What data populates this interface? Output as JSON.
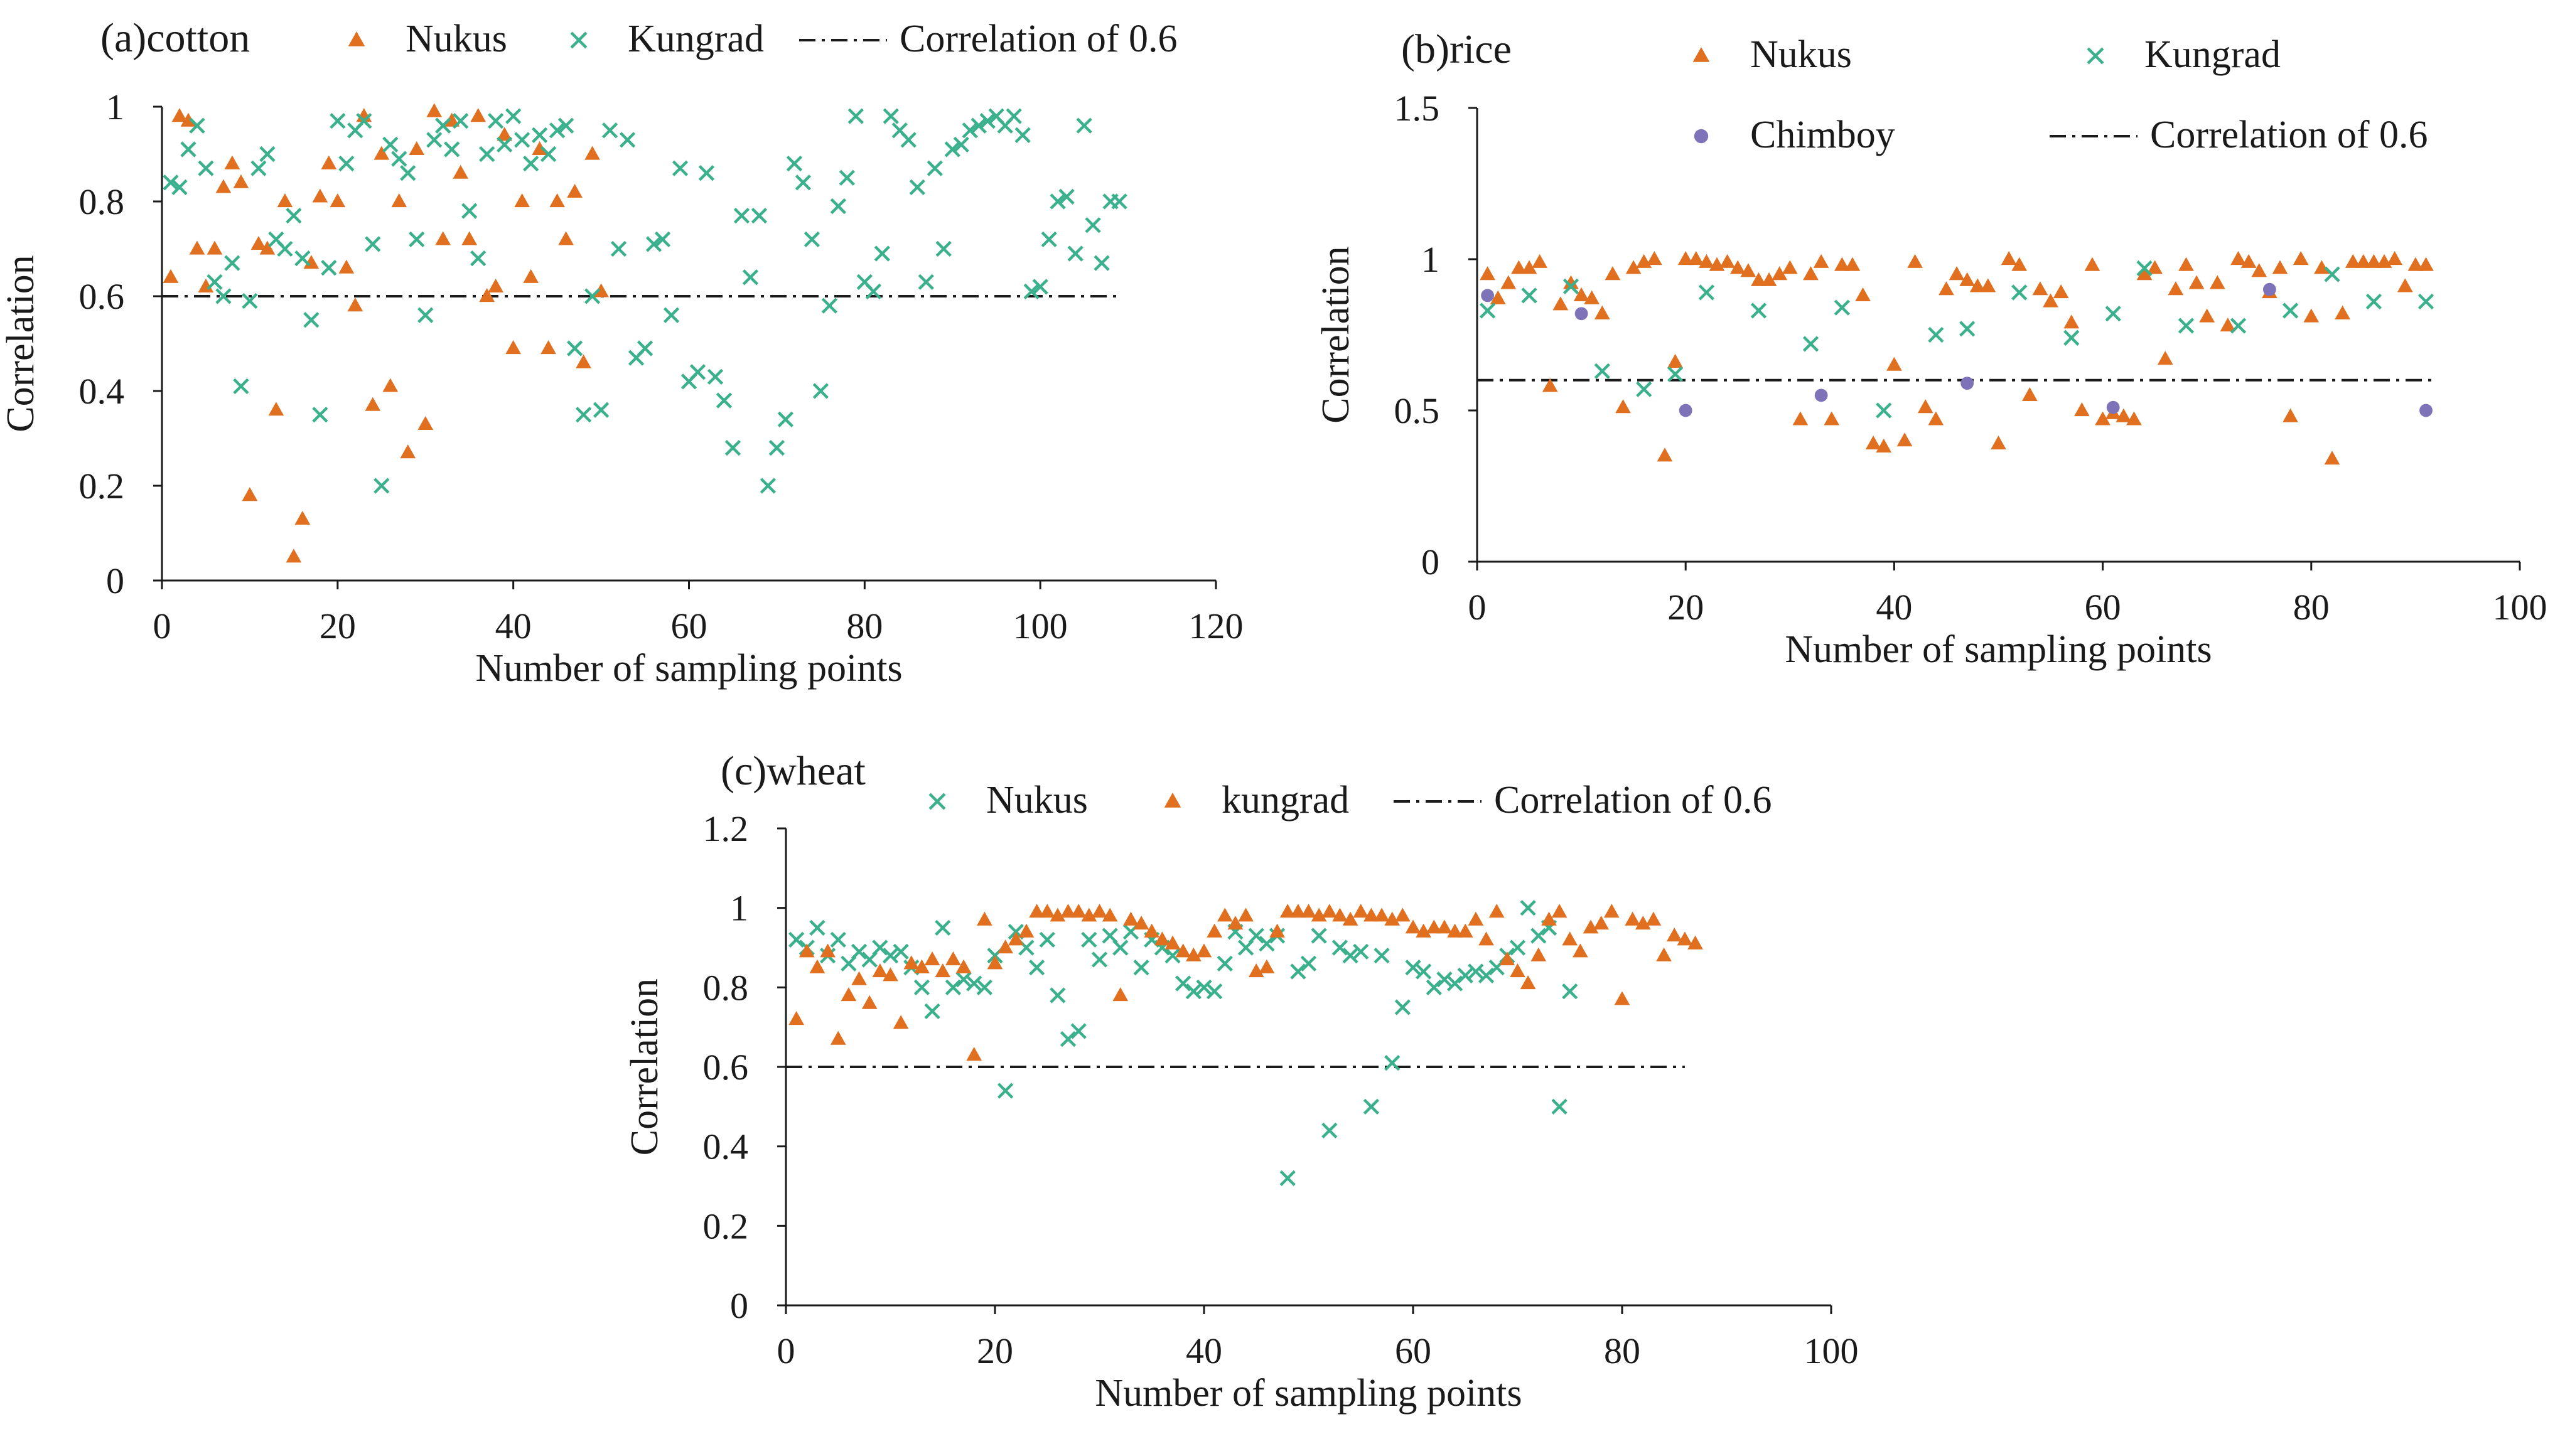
{
  "colors": {
    "nukus_orange": "#e07020",
    "kungrad_green": "#3ab08c",
    "chimboy_purple": "#7e72b8",
    "axis": "#1a1a1a"
  },
  "chart_data": [
    {
      "type": "scatter",
      "panel": "a",
      "title": "(a)cotton",
      "xlabel": "Number of sampling points",
      "ylabel": "Correlation",
      "xlim": [
        0,
        120
      ],
      "ylim": [
        0,
        1
      ],
      "xticks": [
        "0",
        "20",
        "40",
        "60",
        "80",
        "100",
        "120"
      ],
      "yticks": [
        "0",
        "0.2",
        "0.4",
        "0.6",
        "0.8",
        "1"
      ],
      "legend_position": "top",
      "threshold": {
        "label": "Correlation of 0.6",
        "value": 0.6,
        "x_range": [
          0,
          109
        ]
      },
      "series": [
        {
          "name": "Nukus",
          "marker": "triangle",
          "color": "#e07020",
          "x": [
            1,
            2,
            3,
            4,
            5,
            6,
            7,
            8,
            9,
            10,
            11,
            12,
            13,
            14,
            15,
            16,
            17,
            18,
            19,
            20,
            21,
            22,
            23,
            24,
            25,
            26,
            27,
            28,
            29,
            30,
            31,
            32,
            33,
            34,
            35,
            36,
            37,
            38,
            39,
            40,
            41,
            42,
            43,
            44,
            45,
            46,
            47,
            48,
            49,
            50
          ],
          "y": [
            0.64,
            0.98,
            0.97,
            0.7,
            0.62,
            0.7,
            0.83,
            0.88,
            0.84,
            0.18,
            0.71,
            0.7,
            0.36,
            0.8,
            0.05,
            0.13,
            0.67,
            0.81,
            0.88,
            0.8,
            0.66,
            0.58,
            0.98,
            0.37,
            0.9,
            0.41,
            0.8,
            0.27,
            0.91,
            0.33,
            0.99,
            0.72,
            0.97,
            0.86,
            0.72,
            0.98,
            0.6,
            0.62,
            0.94,
            0.49,
            0.8,
            0.64,
            0.91,
            0.49,
            0.8,
            0.72,
            0.82,
            0.46,
            0.9,
            0.61
          ]
        },
        {
          "name": "Kungrad",
          "marker": "x",
          "color": "#3ab08c",
          "x": [
            1,
            2,
            3,
            4,
            5,
            6,
            7,
            8,
            9,
            10,
            11,
            12,
            13,
            14,
            15,
            16,
            17,
            18,
            19,
            20,
            21,
            22,
            23,
            24,
            25,
            26,
            27,
            28,
            29,
            30,
            31,
            32,
            33,
            34,
            35,
            36,
            37,
            38,
            39,
            40,
            41,
            42,
            43,
            44,
            45,
            46,
            47,
            48,
            49,
            50,
            51,
            52,
            53,
            54,
            55,
            56,
            57,
            58,
            59,
            60,
            61,
            62,
            63,
            64,
            65,
            66,
            67,
            68,
            69,
            70,
            71,
            72,
            73,
            74,
            75,
            76,
            77,
            78,
            79,
            80,
            81,
            82,
            83,
            84,
            85,
            86,
            87,
            88,
            89,
            90,
            91,
            92,
            93,
            94,
            95,
            96,
            97,
            98,
            99,
            100,
            101,
            102,
            103,
            104,
            105,
            106,
            107,
            108,
            109
          ],
          "y": [
            0.84,
            0.83,
            0.91,
            0.96,
            0.87,
            0.63,
            0.6,
            0.67,
            0.41,
            0.59,
            0.87,
            0.9,
            0.72,
            0.7,
            0.77,
            0.68,
            0.55,
            0.35,
            0.66,
            0.97,
            0.88,
            0.95,
            0.97,
            0.71,
            0.2,
            0.92,
            0.89,
            0.86,
            0.72,
            0.56,
            0.93,
            0.96,
            0.91,
            0.97,
            0.78,
            0.68,
            0.9,
            0.97,
            0.92,
            0.98,
            0.93,
            0.88,
            0.94,
            0.9,
            0.95,
            0.96,
            0.49,
            0.35,
            0.6,
            0.36,
            0.95,
            0.7,
            0.93,
            0.47,
            0.49,
            0.71,
            0.72,
            0.56,
            0.87,
            0.42,
            0.44,
            0.86,
            0.43,
            0.38,
            0.28,
            0.77,
            0.64,
            0.77,
            0.2,
            0.28,
            0.34,
            0.88,
            0.84,
            0.72,
            0.4,
            0.58,
            0.79,
            0.85,
            0.98,
            0.63,
            0.61,
            0.69,
            0.98,
            0.95,
            0.93,
            0.83,
            0.63,
            0.87,
            0.7,
            0.91,
            0.92,
            0.95,
            0.96,
            0.97,
            0.98,
            0.96,
            0.98,
            0.94,
            0.61,
            0.62,
            0.72,
            0.8,
            0.81,
            0.69,
            0.96,
            0.75,
            0.67,
            0.8,
            0.8
          ]
        }
      ]
    },
    {
      "type": "scatter",
      "panel": "b",
      "title": "(b)rice",
      "xlabel": "Number of sampling points",
      "ylabel": "Correlation",
      "xlim": [
        0,
        100
      ],
      "ylim": [
        0,
        1.5
      ],
      "xticks": [
        "0",
        "20",
        "40",
        "60",
        "80",
        "100"
      ],
      "yticks": [
        "0",
        "0.5",
        "1",
        "1.5"
      ],
      "legend_position": "top",
      "threshold": {
        "label": "Correlation of 0.6",
        "value": 0.6,
        "x_range": [
          0,
          92
        ]
      },
      "series": [
        {
          "name": "Nukus",
          "marker": "triangle",
          "color": "#e07020",
          "x": [
            1,
            2,
            3,
            4,
            5,
            6,
            7,
            8,
            9,
            10,
            11,
            12,
            13,
            14,
            15,
            16,
            17,
            18,
            19,
            20,
            21,
            22,
            23,
            24,
            25,
            26,
            27,
            28,
            29,
            30,
            31,
            32,
            33,
            34,
            35,
            36,
            37,
            38,
            39,
            40,
            41,
            42,
            43,
            44,
            45,
            46,
            47,
            48,
            49,
            50,
            51,
            52,
            53,
            54,
            55,
            56,
            57,
            58,
            59,
            60,
            61,
            62,
            63,
            64,
            65,
            66,
            67,
            68,
            69,
            70,
            71,
            72,
            73,
            74,
            75,
            76,
            77,
            78,
            79,
            80,
            81,
            82,
            83,
            84,
            85,
            86,
            87,
            88,
            89,
            90,
            91
          ],
          "y": [
            0.95,
            0.87,
            0.92,
            0.97,
            0.97,
            0.99,
            0.58,
            0.85,
            0.92,
            0.88,
            0.87,
            0.82,
            0.95,
            0.51,
            0.97,
            0.99,
            1.0,
            0.35,
            0.66,
            1.0,
            1.0,
            0.99,
            0.98,
            0.99,
            0.97,
            0.96,
            0.93,
            0.93,
            0.95,
            0.97,
            0.47,
            0.95,
            0.99,
            0.47,
            0.98,
            0.98,
            0.88,
            0.39,
            0.38,
            0.65,
            0.4,
            0.99,
            0.51,
            0.47,
            0.9,
            0.95,
            0.93,
            0.91,
            0.91,
            0.39,
            1.0,
            0.98,
            0.55,
            0.9,
            0.86,
            0.89,
            0.79,
            0.5,
            0.98,
            0.47,
            0.49,
            0.48,
            0.47,
            0.95,
            0.97,
            0.67,
            0.9,
            0.98,
            0.92,
            0.81,
            0.92,
            0.78,
            1.0,
            0.99,
            0.96,
            0.89,
            0.97,
            0.48,
            1.0,
            0.81,
            0.97,
            0.34,
            0.82,
            0.99,
            0.99,
            0.99,
            0.99,
            1.0,
            0.91,
            0.98,
            0.98
          ]
        },
        {
          "name": "Kungrad",
          "marker": "x",
          "color": "#3ab08c",
          "x": [
            1,
            5,
            9,
            12,
            16,
            19,
            22,
            27,
            32,
            35,
            39,
            44,
            47,
            52,
            57,
            61,
            64,
            68,
            73,
            78,
            82,
            86,
            91
          ],
          "y": [
            0.83,
            0.88,
            0.91,
            0.63,
            0.57,
            0.62,
            0.89,
            0.83,
            0.72,
            0.84,
            0.5,
            0.75,
            0.77,
            0.89,
            0.74,
            0.82,
            0.97,
            0.78,
            0.78,
            0.83,
            0.95,
            0.86,
            0.86
          ]
        },
        {
          "name": "Chimboy",
          "marker": "dot",
          "color": "#7e72b8",
          "x": [
            1,
            10,
            20,
            33,
            47,
            61,
            76,
            91
          ],
          "y": [
            0.88,
            0.82,
            0.5,
            0.55,
            0.59,
            0.51,
            0.9,
            0.5
          ]
        }
      ]
    },
    {
      "type": "scatter",
      "panel": "c",
      "title": "(c)wheat",
      "xlabel": "Number of sampling points",
      "ylabel": "Correlation",
      "xlim": [
        0,
        100
      ],
      "ylim": [
        0,
        1.2
      ],
      "xticks": [
        "0",
        "20",
        "40",
        "60",
        "80",
        "100"
      ],
      "yticks": [
        "0",
        "0.2",
        "0.4",
        "0.6",
        "0.8",
        "1",
        "1.2"
      ],
      "legend_position": "top",
      "threshold": {
        "label": "Correlation of 0.6",
        "value": 0.6,
        "x_range": [
          0,
          86
        ]
      },
      "series": [
        {
          "name": "Nukus",
          "marker": "x",
          "color": "#3ab08c",
          "x": [
            1,
            2,
            3,
            4,
            5,
            6,
            7,
            8,
            9,
            10,
            11,
            12,
            13,
            14,
            15,
            16,
            17,
            18,
            19,
            20,
            21,
            22,
            23,
            24,
            25,
            26,
            27,
            28,
            29,
            30,
            31,
            32,
            33,
            34,
            35,
            36,
            37,
            38,
            39,
            40,
            41,
            42,
            43,
            44,
            45,
            46,
            47,
            48,
            49,
            50,
            51,
            52,
            53,
            54,
            55,
            56,
            57,
            58,
            59,
            60,
            61,
            62,
            63,
            64,
            65,
            66,
            67,
            68,
            69,
            70,
            71,
            72,
            73,
            74,
            75
          ],
          "y": [
            0.92,
            0.9,
            0.95,
            0.88,
            0.92,
            0.86,
            0.89,
            0.87,
            0.9,
            0.88,
            0.89,
            0.85,
            0.8,
            0.74,
            0.95,
            0.8,
            0.82,
            0.81,
            0.8,
            0.88,
            0.54,
            0.94,
            0.9,
            0.85,
            0.92,
            0.78,
            0.67,
            0.69,
            0.92,
            0.87,
            0.93,
            0.9,
            0.94,
            0.85,
            0.92,
            0.9,
            0.88,
            0.81,
            0.79,
            0.8,
            0.79,
            0.86,
            0.94,
            0.9,
            0.93,
            0.91,
            0.93,
            0.32,
            0.84,
            0.86,
            0.93,
            0.44,
            0.9,
            0.88,
            0.89,
            0.5,
            0.88,
            0.61,
            0.75,
            0.85,
            0.84,
            0.8,
            0.82,
            0.81,
            0.83,
            0.84,
            0.83,
            0.85,
            0.88,
            0.9,
            1.0,
            0.93,
            0.95,
            0.5,
            0.79
          ]
        },
        {
          "name": "kungrad",
          "marker": "triangle",
          "color": "#e07020",
          "x": [
            1,
            2,
            3,
            4,
            5,
            6,
            7,
            8,
            9,
            10,
            11,
            12,
            13,
            14,
            15,
            16,
            17,
            18,
            19,
            20,
            21,
            22,
            23,
            24,
            25,
            26,
            27,
            28,
            29,
            30,
            31,
            32,
            33,
            34,
            35,
            36,
            37,
            38,
            39,
            40,
            41,
            42,
            43,
            44,
            45,
            46,
            47,
            48,
            49,
            50,
            51,
            52,
            53,
            54,
            55,
            56,
            57,
            58,
            59,
            60,
            61,
            62,
            63,
            64,
            65,
            66,
            67,
            68,
            69,
            70,
            71,
            72,
            73,
            74,
            75,
            76,
            77,
            78,
            79,
            80,
            81,
            82,
            83,
            84,
            85,
            86,
            87
          ],
          "y": [
            0.72,
            0.89,
            0.85,
            0.89,
            0.67,
            0.78,
            0.82,
            0.76,
            0.84,
            0.83,
            0.71,
            0.86,
            0.85,
            0.87,
            0.84,
            0.87,
            0.85,
            0.63,
            0.97,
            0.86,
            0.9,
            0.92,
            0.94,
            0.99,
            0.99,
            0.98,
            0.99,
            0.99,
            0.98,
            0.99,
            0.98,
            0.78,
            0.97,
            0.96,
            0.94,
            0.92,
            0.91,
            0.89,
            0.88,
            0.89,
            0.94,
            0.98,
            0.96,
            0.98,
            0.84,
            0.85,
            0.94,
            0.99,
            0.99,
            0.99,
            0.98,
            0.99,
            0.98,
            0.97,
            0.99,
            0.98,
            0.98,
            0.97,
            0.98,
            0.95,
            0.94,
            0.95,
            0.95,
            0.94,
            0.94,
            0.97,
            0.92,
            0.99,
            0.87,
            0.84,
            0.81,
            0.88,
            0.97,
            0.99,
            0.92,
            0.89,
            0.95,
            0.96,
            0.99,
            0.77,
            0.97,
            0.96,
            0.97,
            0.88,
            0.93,
            0.92,
            0.91
          ]
        }
      ]
    }
  ]
}
